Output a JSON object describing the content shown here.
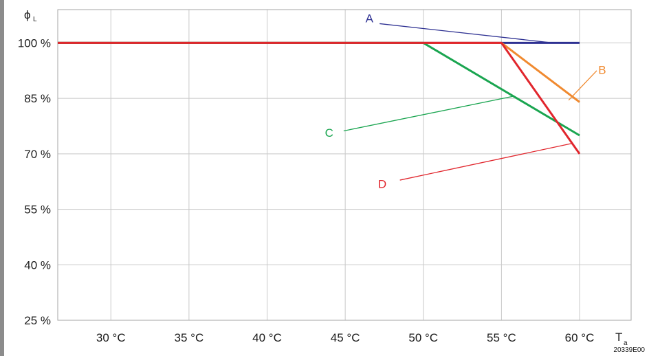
{
  "chart_data": {
    "type": "line",
    "title": "",
    "xlabel": "T",
    "xlabel_sub": "a",
    "ylabel": "ϕ",
    "ylabel_sub": "L",
    "xlim": [
      26.6,
      63.3
    ],
    "ylim": [
      25,
      109
    ],
    "x_ticks": [
      30,
      35,
      40,
      45,
      50,
      55,
      60
    ],
    "x_tick_labels": [
      "30 °C",
      "35 °C",
      "40 °C",
      "45 °C",
      "50 °C",
      "55 °C",
      "60 °C"
    ],
    "y_ticks": [
      25,
      40,
      55,
      70,
      85,
      100
    ],
    "y_tick_labels": [
      "25 %",
      "40 %",
      "55 %",
      "70 %",
      "85 %",
      "100 %"
    ],
    "grid": true,
    "series": [
      {
        "name": "A",
        "color": "#2e3192",
        "x": [
          26.6,
          60
        ],
        "y": [
          100,
          100
        ]
      },
      {
        "name": "B",
        "color": "#f08a30",
        "x": [
          26.6,
          55,
          60
        ],
        "y": [
          100,
          100,
          84
        ]
      },
      {
        "name": "C",
        "color": "#1aa550",
        "x": [
          26.6,
          50,
          60
        ],
        "y": [
          100,
          100,
          75
        ]
      },
      {
        "name": "D",
        "color": "#e1262d",
        "x": [
          26.6,
          55,
          60
        ],
        "y": [
          100,
          100,
          70
        ]
      }
    ],
    "annotations": [
      {
        "label": "A",
        "color": "#2e3192",
        "text_x": 46.3,
        "text_y": 105.6,
        "pointer_from": [
          47.2,
          105.2
        ],
        "pointer_to": [
          58.3,
          100
        ]
      },
      {
        "label": "B",
        "color": "#f08a30",
        "text_x": 61.2,
        "text_y": 91.6,
        "pointer_from": [
          61.1,
          92.5
        ],
        "pointer_to": [
          59.3,
          84.5
        ]
      },
      {
        "label": "C",
        "color": "#1aa550",
        "text_x": 43.7,
        "text_y": 74.6,
        "pointer_from": [
          44.9,
          76.2
        ],
        "pointer_to": [
          55.8,
          85.6
        ]
      },
      {
        "label": "D",
        "color": "#e1262d",
        "text_x": 47.1,
        "text_y": 60.8,
        "pointer_from": [
          48.5,
          62.9
        ],
        "pointer_to": [
          59.5,
          72.8
        ]
      }
    ],
    "watermark": "20339E00"
  }
}
